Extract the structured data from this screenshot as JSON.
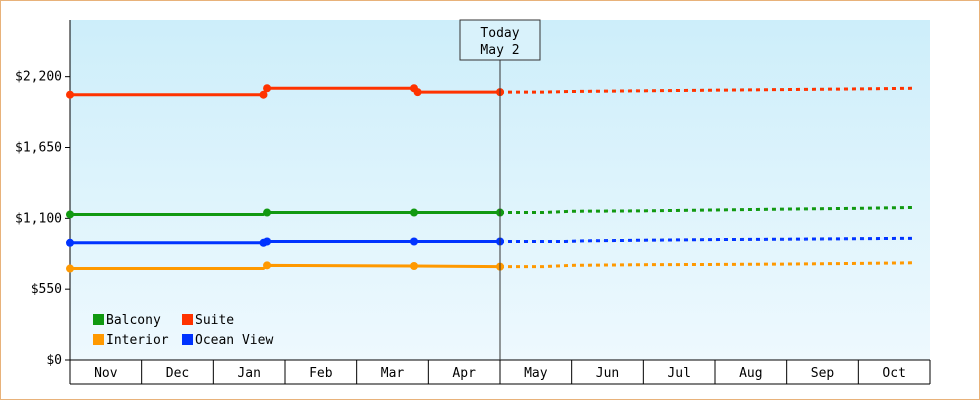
{
  "chart_data": {
    "type": "line",
    "x_unit": "month",
    "months": [
      "Nov",
      "Dec",
      "Jan",
      "Feb",
      "Mar",
      "Apr",
      "May",
      "Jun",
      "Jul",
      "Aug",
      "Sep",
      "Oct"
    ],
    "y_ticks": [
      "$0",
      "$550",
      "$1,100",
      "$1,650",
      "$2,200"
    ],
    "ylim": [
      0,
      2640
    ],
    "grid": false,
    "legend_position": "bottom-left",
    "today_marker": {
      "line1": "Today",
      "line2": "May 2",
      "x": 6.0
    },
    "series": [
      {
        "name": "Balcony",
        "color": "#119911",
        "history": [
          [
            0,
            1130
          ],
          [
            2.7,
            1130
          ],
          [
            2.75,
            1145
          ],
          [
            4.8,
            1145
          ],
          [
            6.0,
            1145
          ]
        ],
        "points": [
          [
            0,
            1130
          ],
          [
            2.75,
            1145
          ],
          [
            4.8,
            1145
          ],
          [
            6.0,
            1145
          ]
        ],
        "forecast": [
          [
            6.0,
            1145
          ],
          [
            6.6,
            1145
          ],
          [
            7.0,
            1155
          ],
          [
            8.0,
            1158
          ],
          [
            9.0,
            1165
          ],
          [
            10.0,
            1172
          ],
          [
            11.0,
            1178
          ],
          [
            11.8,
            1185
          ]
        ]
      },
      {
        "name": "Suite",
        "color": "#ff3300",
        "history": [
          [
            0,
            2060
          ],
          [
            2.7,
            2060
          ],
          [
            2.75,
            2110
          ],
          [
            4.8,
            2110
          ],
          [
            4.85,
            2080
          ],
          [
            6.0,
            2080
          ]
        ],
        "points": [
          [
            0,
            2060
          ],
          [
            2.7,
            2060
          ],
          [
            2.75,
            2110
          ],
          [
            4.8,
            2110
          ],
          [
            4.85,
            2080
          ],
          [
            6.0,
            2080
          ]
        ],
        "forecast": [
          [
            6.0,
            2080
          ],
          [
            6.6,
            2080
          ],
          [
            7.0,
            2085
          ],
          [
            8.0,
            2090
          ],
          [
            9.0,
            2095
          ],
          [
            10.0,
            2100
          ],
          [
            11.0,
            2105
          ],
          [
            11.8,
            2110
          ]
        ]
      },
      {
        "name": "Interior",
        "color": "#ff9900",
        "history": [
          [
            0,
            710
          ],
          [
            2.7,
            710
          ],
          [
            2.75,
            735
          ],
          [
            4.8,
            730
          ],
          [
            6.0,
            725
          ]
        ],
        "points": [
          [
            0,
            710
          ],
          [
            2.75,
            735
          ],
          [
            4.8,
            730
          ],
          [
            6.0,
            725
          ]
        ],
        "forecast": [
          [
            6.0,
            725
          ],
          [
            6.6,
            725
          ],
          [
            7.0,
            735
          ],
          [
            8.0,
            740
          ],
          [
            9.0,
            742
          ],
          [
            10.0,
            745
          ],
          [
            11.0,
            750
          ],
          [
            11.8,
            755
          ]
        ]
      },
      {
        "name": "Ocean View",
        "color": "#0033ff",
        "history": [
          [
            0,
            910
          ],
          [
            2.7,
            910
          ],
          [
            2.75,
            920
          ],
          [
            4.8,
            920
          ],
          [
            6.0,
            920
          ]
        ],
        "points": [
          [
            0,
            910
          ],
          [
            2.7,
            910
          ],
          [
            2.75,
            920
          ],
          [
            4.8,
            920
          ],
          [
            6.0,
            920
          ]
        ],
        "forecast": [
          [
            6.0,
            920
          ],
          [
            6.9,
            920
          ],
          [
            7.2,
            925
          ],
          [
            8.0,
            930
          ],
          [
            9.0,
            935
          ],
          [
            10.0,
            938
          ],
          [
            11.0,
            942
          ],
          [
            11.8,
            945
          ]
        ]
      }
    ]
  }
}
